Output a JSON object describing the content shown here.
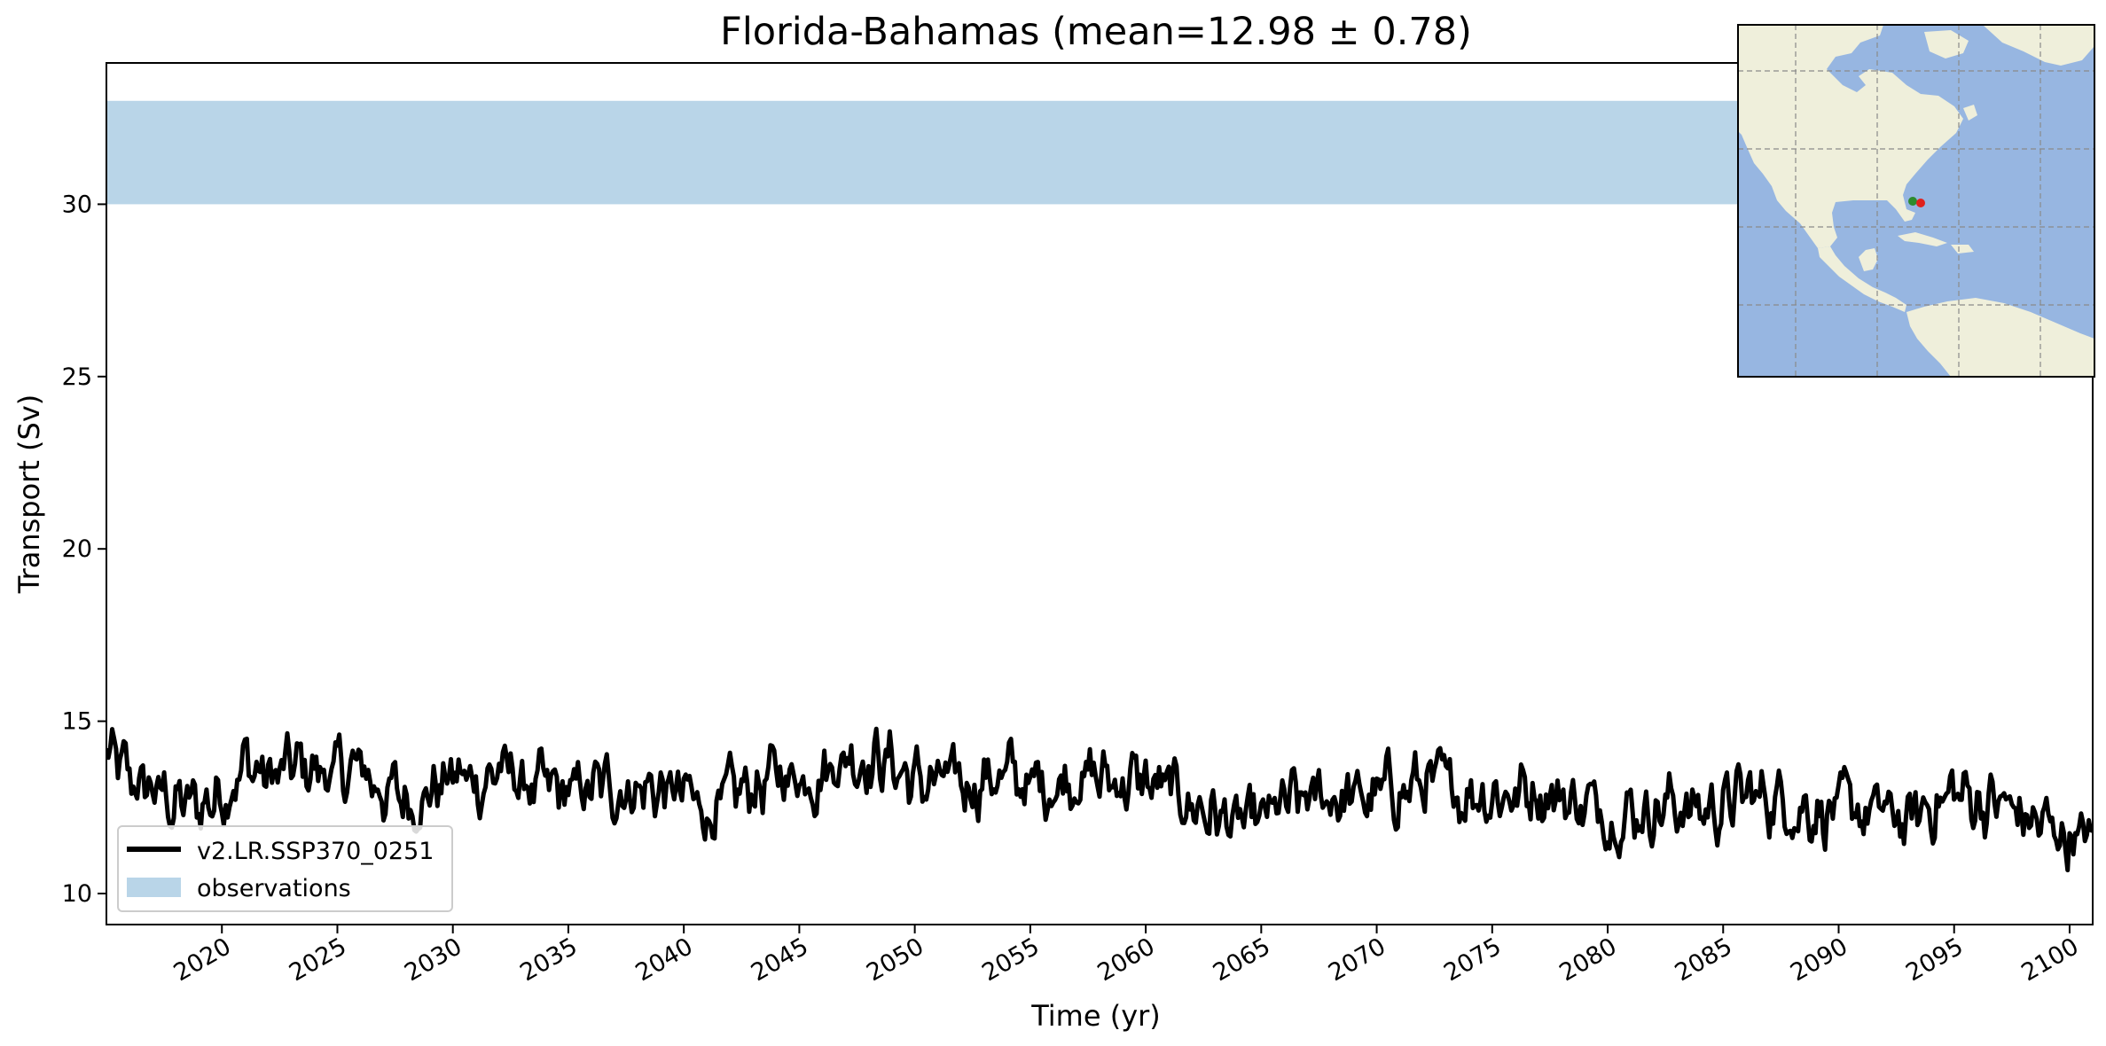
{
  "chart_data": {
    "type": "line",
    "title": "Florida-Bahamas (mean=12.98 ± 0.78)",
    "xlabel": "Time (yr)",
    "ylabel": "Transport (Sv)",
    "xlim": [
      2015.0,
      2101.0
    ],
    "ylim": [
      9.1,
      34.1
    ],
    "xticks": [
      2020,
      2025,
      2030,
      2035,
      2040,
      2045,
      2050,
      2055,
      2060,
      2065,
      2070,
      2075,
      2080,
      2085,
      2090,
      2095,
      2100
    ],
    "yticks": [
      10,
      15,
      20,
      25,
      30
    ],
    "grid": false,
    "legend_position": "lower-left",
    "observations": {
      "name": "observations",
      "y_low": 30.0,
      "y_high": 33.0,
      "color": "#b9d5e8"
    },
    "series": [
      {
        "name": "v2.LR.SSP370_0251",
        "color": "#000000",
        "x_start": 2015.0,
        "x_step": 0.08333,
        "anchors": [
          [
            2015.0,
            14.0
          ],
          [
            2016.0,
            13.2
          ],
          [
            2017.0,
            13.0
          ],
          [
            2018.0,
            12.6
          ],
          [
            2019.0,
            12.5
          ],
          [
            2020.0,
            13.0
          ],
          [
            2021.0,
            13.8
          ],
          [
            2022.0,
            13.3
          ],
          [
            2023.0,
            13.6
          ],
          [
            2024.0,
            13.6
          ],
          [
            2025.0,
            13.4
          ],
          [
            2026.0,
            13.6
          ],
          [
            2027.0,
            13.0
          ],
          [
            2028.0,
            12.7
          ],
          [
            2029.0,
            13.0
          ],
          [
            2030.0,
            13.4
          ],
          [
            2031.0,
            13.2
          ],
          [
            2032.0,
            13.6
          ],
          [
            2033.0,
            13.2
          ],
          [
            2034.0,
            12.9
          ],
          [
            2035.0,
            12.9
          ],
          [
            2036.0,
            13.0
          ],
          [
            2037.0,
            13.1
          ],
          [
            2038.0,
            13.1
          ],
          [
            2039.0,
            13.0
          ],
          [
            2040.0,
            12.8
          ],
          [
            2041.0,
            12.4
          ],
          [
            2042.0,
            12.6
          ],
          [
            2043.0,
            13.1
          ],
          [
            2044.0,
            13.4
          ],
          [
            2045.0,
            13.5
          ],
          [
            2046.0,
            13.6
          ],
          [
            2047.0,
            14.0
          ],
          [
            2048.0,
            14.0
          ],
          [
            2049.0,
            13.8
          ],
          [
            2050.0,
            13.2
          ],
          [
            2051.0,
            13.2
          ],
          [
            2052.0,
            13.1
          ],
          [
            2053.0,
            13.4
          ],
          [
            2054.0,
            13.4
          ],
          [
            2055.0,
            13.1
          ],
          [
            2056.0,
            13.2
          ],
          [
            2057.0,
            13.5
          ],
          [
            2058.0,
            13.3
          ],
          [
            2059.0,
            13.3
          ],
          [
            2060.0,
            13.2
          ],
          [
            2061.0,
            12.9
          ],
          [
            2062.0,
            12.6
          ],
          [
            2063.0,
            12.3
          ],
          [
            2064.0,
            11.9
          ],
          [
            2065.0,
            12.0
          ],
          [
            2066.0,
            12.5
          ],
          [
            2067.0,
            12.6
          ],
          [
            2068.0,
            12.9
          ],
          [
            2069.0,
            12.7
          ],
          [
            2070.0,
            12.8
          ],
          [
            2071.0,
            13.0
          ],
          [
            2072.0,
            13.2
          ],
          [
            2073.0,
            13.0
          ],
          [
            2074.0,
            13.0
          ],
          [
            2075.0,
            13.0
          ],
          [
            2076.0,
            12.9
          ],
          [
            2077.0,
            13.1
          ],
          [
            2078.0,
            12.8
          ],
          [
            2079.0,
            12.6
          ],
          [
            2080.0,
            12.4
          ],
          [
            2081.0,
            12.4
          ],
          [
            2082.0,
            12.5
          ],
          [
            2083.0,
            12.6
          ],
          [
            2084.0,
            12.4
          ],
          [
            2085.0,
            12.6
          ],
          [
            2086.0,
            12.8
          ],
          [
            2087.0,
            12.8
          ],
          [
            2088.0,
            12.6
          ],
          [
            2089.0,
            12.5
          ],
          [
            2090.0,
            12.3
          ],
          [
            2091.0,
            12.4
          ],
          [
            2092.0,
            12.3
          ],
          [
            2093.0,
            12.0
          ],
          [
            2094.0,
            12.6
          ],
          [
            2095.0,
            12.9
          ],
          [
            2096.0,
            12.7
          ],
          [
            2097.0,
            12.6
          ],
          [
            2098.0,
            12.2
          ],
          [
            2099.0,
            11.9
          ],
          [
            2100.0,
            11.7
          ],
          [
            2101.0,
            11.5
          ]
        ]
      }
    ]
  },
  "inset_map": {
    "ocean_color": "#97b6e1",
    "land_color": "#efefdb",
    "markers": [
      {
        "name": "section-start",
        "color": "#2e8b2e"
      },
      {
        "name": "section-end",
        "color": "#e0211d"
      }
    ]
  }
}
